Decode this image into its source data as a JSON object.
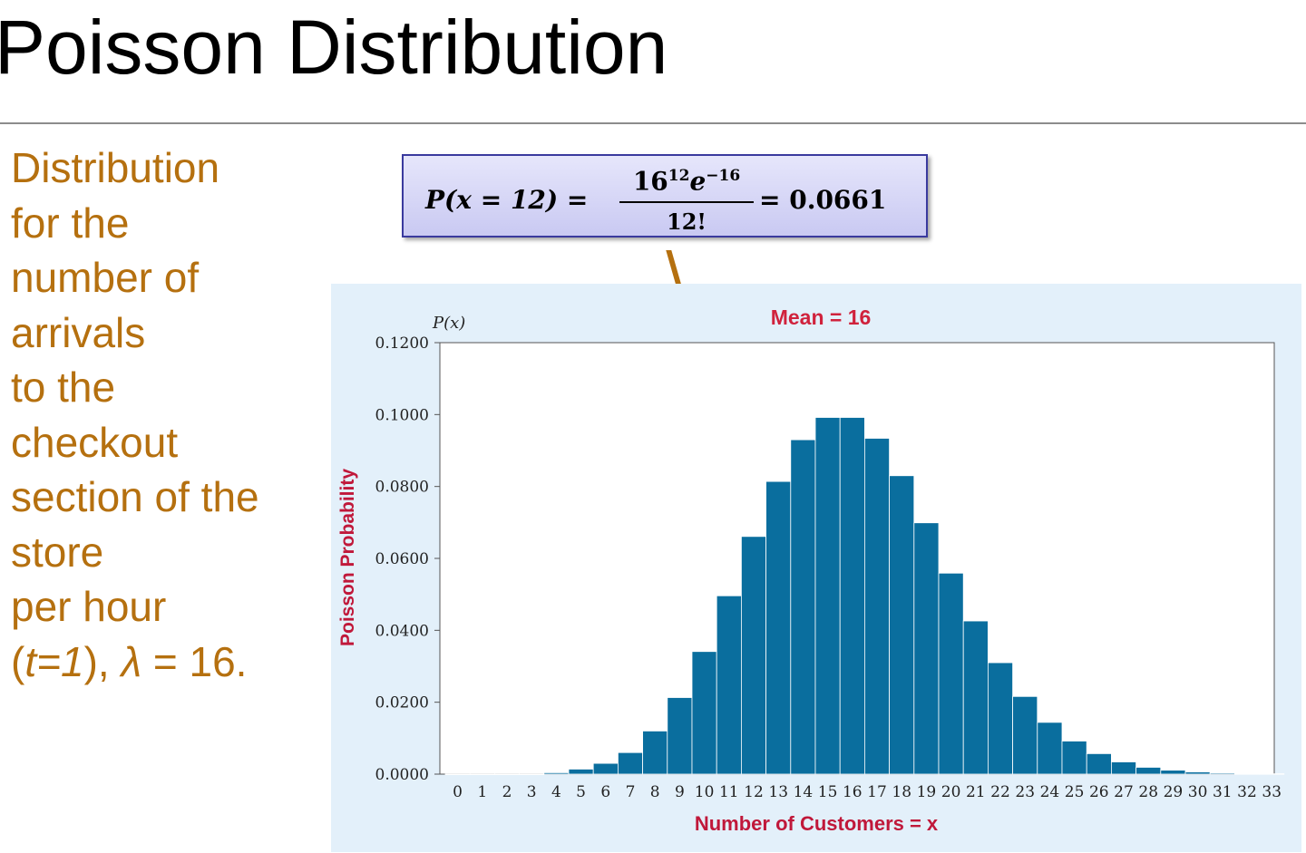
{
  "slide": {
    "title": "Poisson Distribution",
    "description_lines": [
      "Distribution",
      "for the",
      "number of",
      "arrivals",
      "to the",
      "checkout",
      "section of the",
      "store",
      "per hour",
      "(t=1), λ = 16."
    ]
  },
  "formula": {
    "lhs": "P(x = 12) =",
    "numerator": "16",
    "numerator_exp": "12",
    "numerator_e": "e",
    "numerator_e_exp": "−16",
    "denominator": "12!",
    "rhs": "= 0.0661"
  },
  "colors": {
    "bar": "#0a6e9e",
    "text_accent": "#b5700f",
    "mean_label": "#d0223c",
    "axis_label": "#c0183a",
    "panel_bg": "#e3f0fa"
  },
  "chart_data": {
    "type": "bar",
    "title": "Mean = 16",
    "ylabel_top": "P(x)",
    "ylabel": "Poisson Probability",
    "xlabel": "Number of Customers = x",
    "ylim": [
      0,
      0.12
    ],
    "yticks": [
      "0.0000",
      "0.0200",
      "0.0400",
      "0.0600",
      "0.0800",
      "0.1000",
      "0.1200"
    ],
    "categories": [
      "0",
      "1",
      "2",
      "3",
      "4",
      "5",
      "6",
      "7",
      "8",
      "9",
      "10",
      "11",
      "12",
      "13",
      "14",
      "15",
      "16",
      "17",
      "18",
      "19",
      "20",
      "21",
      "22",
      "23",
      "24",
      "25",
      "26",
      "27",
      "28",
      "29",
      "30",
      "31",
      "32",
      "33"
    ],
    "values": [
      0.0,
      0.0,
      0.0,
      0.0,
      0.0004,
      0.0014,
      0.003,
      0.006,
      0.012,
      0.0213,
      0.0341,
      0.0496,
      0.0661,
      0.0814,
      0.093,
      0.0992,
      0.0992,
      0.0934,
      0.083,
      0.0699,
      0.0559,
      0.0426,
      0.031,
      0.0216,
      0.0144,
      0.0092,
      0.0057,
      0.0034,
      0.0019,
      0.0011,
      0.0006,
      0.0003,
      0.0001,
      0.0001
    ],
    "grid": false
  }
}
